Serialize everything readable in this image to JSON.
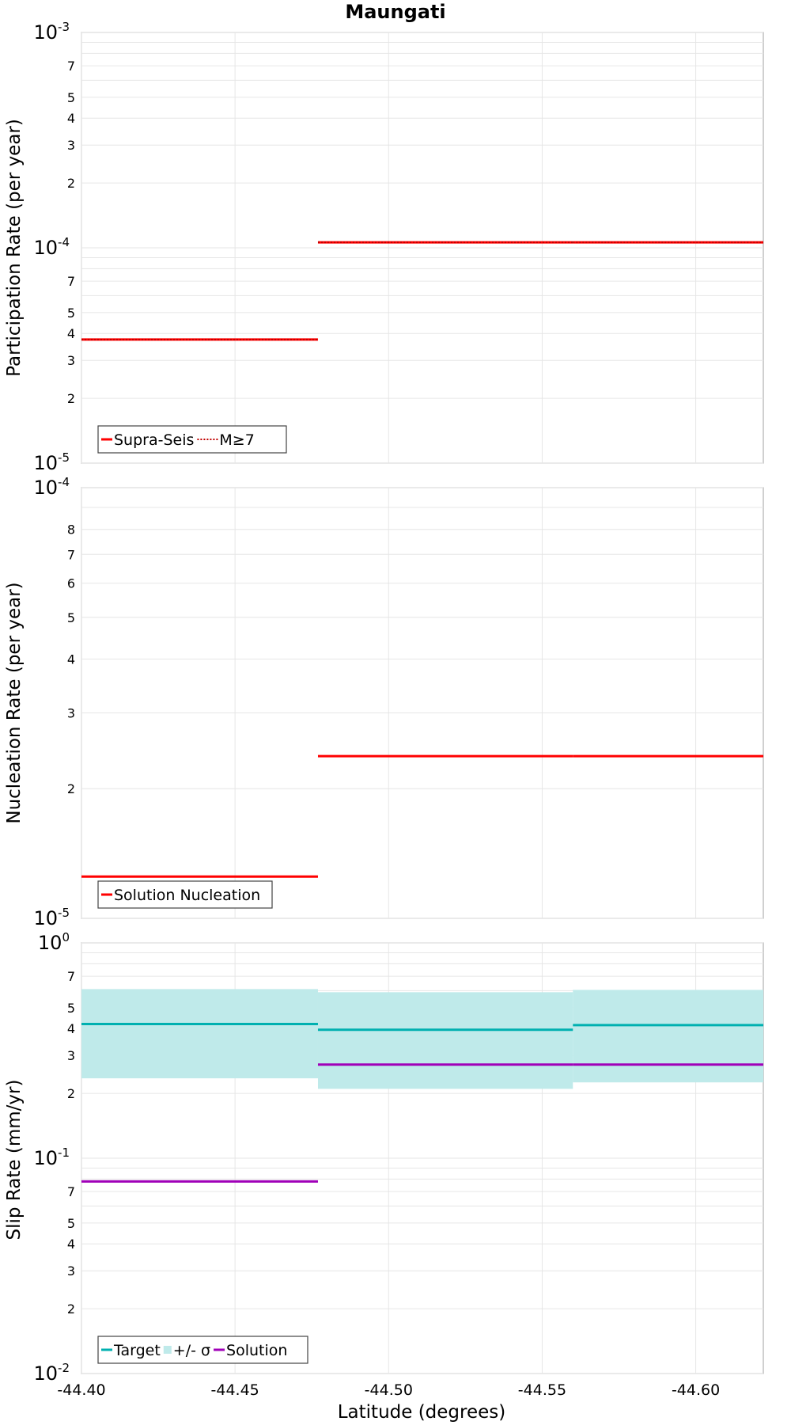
{
  "figure": {
    "title": "Maungati",
    "xlabel": "Latitude (degrees)",
    "x_tick_labels": [
      "-44.40",
      "-44.45",
      "-44.50",
      "-44.55",
      "-44.60"
    ]
  },
  "chart_data": [
    {
      "type": "line",
      "ylabel": "Participation Rate (per year)",
      "yscale": "log",
      "ylim": [
        1e-05,
        0.001
      ],
      "xlim": [
        -44.4,
        -44.622
      ],
      "x_ticks": [
        -44.4,
        -44.45,
        -44.5,
        -44.55,
        -44.6
      ],
      "grid": true,
      "legend_position": "bottom-left",
      "y_ticks": [
        {
          "value": 0.001,
          "major": true,
          "base": "10",
          "exp": "-3"
        },
        {
          "value": 0.0007,
          "major": false,
          "label": "7"
        },
        {
          "value": 0.0005,
          "major": false,
          "label": "5"
        },
        {
          "value": 0.0004,
          "major": false,
          "label": "4"
        },
        {
          "value": 0.0003,
          "major": false,
          "label": "3"
        },
        {
          "value": 0.0002,
          "major": false,
          "label": "2"
        },
        {
          "value": 0.0001,
          "major": true,
          "base": "10",
          "exp": "-4"
        },
        {
          "value": 7e-05,
          "major": false,
          "label": "7"
        },
        {
          "value": 5e-05,
          "major": false,
          "label": "5"
        },
        {
          "value": 4e-05,
          "major": false,
          "label": "4"
        },
        {
          "value": 3e-05,
          "major": false,
          "label": "3"
        },
        {
          "value": 2e-05,
          "major": false,
          "label": "2"
        },
        {
          "value": 1e-05,
          "major": true,
          "base": "10",
          "exp": "-5"
        }
      ],
      "minor_grid": [
        0.0009,
        0.0008,
        0.0006,
        9e-05,
        8e-05,
        6e-05
      ],
      "series": [
        {
          "name": "Supra-Seis",
          "color": "#ff0000",
          "style": "solid",
          "segments": [
            {
              "x": [
                -44.4,
                -44.477
              ],
              "y": 3.75e-05
            },
            {
              "x": [
                -44.477,
                -44.56
              ],
              "y": 0.000106
            },
            {
              "x": [
                -44.56,
                -44.622
              ],
              "y": 0.000106
            }
          ]
        },
        {
          "name": "M≥7",
          "color": "#ff0000",
          "style": "dotted",
          "segments": [
            {
              "x": [
                -44.4,
                -44.477
              ],
              "y": 3.75e-05
            },
            {
              "x": [
                -44.477,
                -44.56
              ],
              "y": 0.000106
            },
            {
              "x": [
                -44.56,
                -44.622
              ],
              "y": 0.000106
            }
          ]
        }
      ]
    },
    {
      "type": "line",
      "ylabel": "Nucleation Rate (per year)",
      "yscale": "log",
      "ylim": [
        1e-05,
        0.0001
      ],
      "xlim": [
        -44.4,
        -44.622
      ],
      "x_ticks": [
        -44.4,
        -44.45,
        -44.5,
        -44.55,
        -44.6
      ],
      "grid": true,
      "legend_position": "bottom-left",
      "y_ticks": [
        {
          "value": 0.0001,
          "major": true,
          "base": "10",
          "exp": "-4"
        },
        {
          "value": 8e-05,
          "major": false,
          "label": "8"
        },
        {
          "value": 7e-05,
          "major": false,
          "label": "7"
        },
        {
          "value": 6e-05,
          "major": false,
          "label": "6"
        },
        {
          "value": 5e-05,
          "major": false,
          "label": "5"
        },
        {
          "value": 4e-05,
          "major": false,
          "label": "4"
        },
        {
          "value": 3e-05,
          "major": false,
          "label": "3"
        },
        {
          "value": 2e-05,
          "major": false,
          "label": "2"
        },
        {
          "value": 1e-05,
          "major": true,
          "base": "10",
          "exp": "-5"
        }
      ],
      "minor_grid": [
        9e-05
      ],
      "series": [
        {
          "name": "Solution Nucleation",
          "color": "#ff0000",
          "style": "solid",
          "segments": [
            {
              "x": [
                -44.4,
                -44.477
              ],
              "y": 1.25e-05
            },
            {
              "x": [
                -44.477,
                -44.56
              ],
              "y": 2.38e-05
            },
            {
              "x": [
                -44.56,
                -44.622
              ],
              "y": 2.38e-05
            }
          ]
        }
      ]
    },
    {
      "type": "line",
      "ylabel": "Slip Rate (mm/yr)",
      "yscale": "log",
      "ylim": [
        0.01,
        1
      ],
      "xlim": [
        -44.4,
        -44.622
      ],
      "x_ticks": [
        -44.4,
        -44.45,
        -44.5,
        -44.55,
        -44.6
      ],
      "grid": true,
      "legend_position": "bottom-left",
      "y_ticks": [
        {
          "value": 1,
          "major": true,
          "base": "10",
          "exp": "0"
        },
        {
          "value": 0.7,
          "major": false,
          "label": "7"
        },
        {
          "value": 0.5,
          "major": false,
          "label": "5"
        },
        {
          "value": 0.4,
          "major": false,
          "label": "4"
        },
        {
          "value": 0.3,
          "major": false,
          "label": "3"
        },
        {
          "value": 0.2,
          "major": false,
          "label": "2"
        },
        {
          "value": 0.1,
          "major": true,
          "base": "10",
          "exp": "-1"
        },
        {
          "value": 0.07,
          "major": false,
          "label": "7"
        },
        {
          "value": 0.05,
          "major": false,
          "label": "5"
        },
        {
          "value": 0.04,
          "major": false,
          "label": "4"
        },
        {
          "value": 0.03,
          "major": false,
          "label": "3"
        },
        {
          "value": 0.02,
          "major": false,
          "label": "2"
        },
        {
          "value": 0.01,
          "major": true,
          "base": "10",
          "exp": "-2"
        }
      ],
      "minor_grid": [
        0.9,
        0.8,
        0.6,
        0.09,
        0.08,
        0.06
      ],
      "band": {
        "name": "+/- σ",
        "color": "#bfeaea",
        "segments": [
          {
            "x": [
              -44.4,
              -44.477
            ],
            "low": 0.235,
            "high": 0.61
          },
          {
            "x": [
              -44.477,
              -44.56
            ],
            "low": 0.21,
            "high": 0.59
          },
          {
            "x": [
              -44.56,
              -44.622
            ],
            "low": 0.225,
            "high": 0.605
          }
        ]
      },
      "series": [
        {
          "name": "Target",
          "color": "#00b0b0",
          "style": "solid",
          "segments": [
            {
              "x": [
                -44.4,
                -44.477
              ],
              "y": 0.42
            },
            {
              "x": [
                -44.477,
                -44.56
              ],
              "y": 0.395
            },
            {
              "x": [
                -44.56,
                -44.622
              ],
              "y": 0.415
            }
          ]
        },
        {
          "name": "Solution",
          "color": "#a000b8",
          "style": "solid",
          "segments": [
            {
              "x": [
                -44.4,
                -44.477
              ],
              "y": 0.078
            },
            {
              "x": [
                -44.477,
                -44.56
              ],
              "y": 0.272
            },
            {
              "x": [
                -44.56,
                -44.622
              ],
              "y": 0.272
            }
          ]
        }
      ],
      "legend_order": [
        "Target",
        "+/- σ",
        "Solution"
      ]
    }
  ]
}
